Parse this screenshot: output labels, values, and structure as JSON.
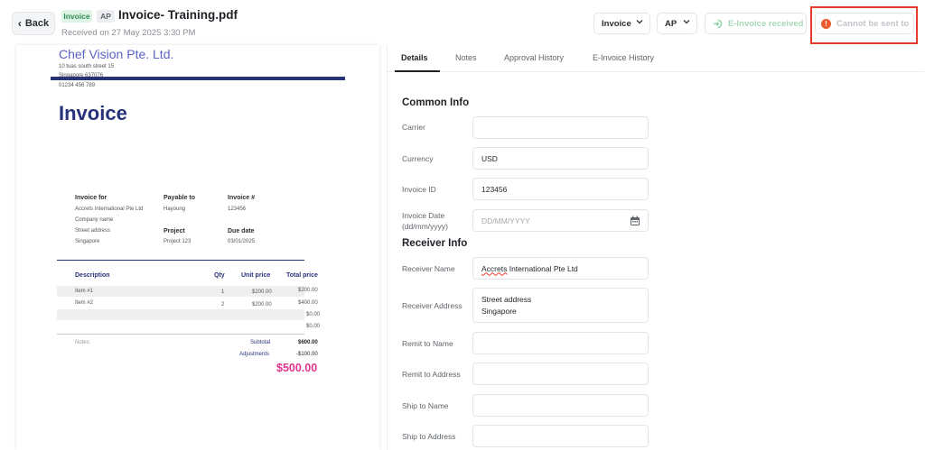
{
  "header": {
    "back_label": "Back",
    "tag_type": "Invoice",
    "tag_ap": "AP",
    "doc_title": "Invoice- Training.pdf",
    "received": "Received on 27 May 2025 3:30 PM",
    "dropdown_type": "Invoice",
    "dropdown_ledger": "AP",
    "einvoice_button": "E-Invoice received",
    "cannot_send_button": "Cannot be sent to"
  },
  "document": {
    "company": "Chef Vision Pte. Ltd.",
    "address_lines": [
      "10 tuas south street 15",
      "Singapore 637076",
      "01234 456 789"
    ],
    "heading": "Invoice",
    "invoice_for_label": "Invoice for",
    "invoice_for_lines": [
      "Accrets International Pte Ltd",
      "Company name",
      "Street address",
      "Singapore"
    ],
    "payable_to_label": "Payable to",
    "payable_to_value": "Hayoung",
    "invoice_no_label": "Invoice #",
    "invoice_no_value": "123456",
    "project_label": "Project",
    "project_value": "Project 123",
    "due_date_label": "Due date",
    "due_date_value": "03/01/2025",
    "columns": [
      "Description",
      "Qty",
      "Unit price",
      "Total price"
    ],
    "rows": [
      {
        "description": "Item #1",
        "qty": "1",
        "unit_price": "$200.00",
        "total": "$200.00"
      },
      {
        "description": "Item #2",
        "qty": "2",
        "unit_price": "$200.00",
        "total": "$400.00"
      },
      {
        "description": "",
        "qty": "",
        "unit_price": "",
        "total": "$0.00"
      },
      {
        "description": "",
        "qty": "",
        "unit_price": "",
        "total": "$0.00"
      }
    ],
    "notes_label": "Notes:",
    "subtotal_label": "Subtotal",
    "subtotal_value": "$600.00",
    "adjustments_label": "Adjustments",
    "adjustments_value": "-$100.00",
    "grand_total": "$500.00"
  },
  "tabs": [
    "Details",
    "Notes",
    "Approval History",
    "E-Invoice History"
  ],
  "form": {
    "common_info_title": "Common Info",
    "carrier_label": "Carrier",
    "carrier_value": "",
    "currency_label": "Currency",
    "currency_value": "USD",
    "invoice_id_label": "Invoice ID",
    "invoice_id_value": "123456",
    "invoice_date_label_1": "Invoice Date",
    "invoice_date_label_2": "(dd/mm/yyyy)",
    "invoice_date_placeholder": "DD/MM/YYYY",
    "receiver_info_title": "Receiver Info",
    "receiver_name_label": "Receiver Name",
    "receiver_name_value_a": "Accrets",
    "receiver_name_value_b": " International Pte Ltd",
    "receiver_address_label": "Receiver Address",
    "receiver_address_line1": "Street address",
    "receiver_address_line2": "Singapore",
    "remit_name_label": "Remit to Name",
    "remit_address_label": "Remit to Address",
    "ship_name_label": "Ship to Name",
    "ship_address_label": "Ship to Address"
  },
  "colors": {
    "accent_navy": "#27327a",
    "total_pink": "#e0348f",
    "alert_red": "#e53b2c",
    "success_green": "#2e8b4f"
  }
}
